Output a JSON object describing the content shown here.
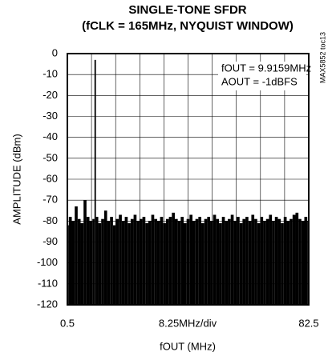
{
  "chart_data": {
    "type": "spectrum",
    "title": "SINGLE-TONE SFDR",
    "subtitle": "(fCLK = 165MHz, NYQUIST WINDOW)",
    "x_label": "fOUT (MHz)",
    "y_label": "AMPLITUDE (dBm)",
    "x_division_label": "8.25MHz/div",
    "annotations": [
      "fOUT = 9.9159MHz",
      "AOUT = -1dBFS"
    ],
    "side_note": "MAX5852 toc13",
    "color": "#000000",
    "grid": true,
    "x_divisions": 10,
    "xlim": [
      0.5,
      82.5
    ],
    "xticks": [
      0.5,
      82.5
    ],
    "ylim": [
      -120,
      0
    ],
    "yticks": [
      0,
      -10,
      -20,
      -30,
      -40,
      -50,
      -60,
      -70,
      -80,
      -90,
      -100,
      -110,
      -120
    ],
    "x": [
      0.5,
      1.5,
      2.5,
      3.5,
      4.5,
      5.5,
      6.5,
      7.5,
      8.5,
      9.5,
      9.9159,
      10.5,
      11.5,
      12.5,
      13.5,
      14.5,
      15.5,
      16.5,
      17.5,
      18.5,
      19.5,
      20.5,
      21.5,
      22.5,
      23.5,
      24.5,
      25.5,
      26.5,
      27.5,
      28.5,
      29.5,
      30.5,
      31.5,
      32.5,
      33.5,
      34.5,
      35.5,
      36.5,
      37.5,
      38.5,
      39.5,
      40.5,
      41.5,
      42.5,
      43.5,
      44.5,
      45.5,
      46.5,
      47.5,
      48.5,
      49.5,
      50.5,
      51.5,
      52.5,
      53.5,
      54.5,
      55.5,
      56.5,
      57.5,
      58.5,
      59.5,
      60.5,
      61.5,
      62.5,
      63.5,
      64.5,
      65.5,
      66.5,
      67.5,
      68.5,
      69.5,
      70.5,
      71.5,
      72.5,
      73.5,
      74.5,
      75.5,
      76.5,
      77.5,
      78.5,
      79.5,
      80.5,
      81.5,
      82.5
    ],
    "values": [
      -82,
      -78,
      -80,
      -73,
      -79,
      -81,
      -70,
      -78,
      -80,
      -79,
      -3,
      -78,
      -81,
      -79,
      -75,
      -80,
      -78,
      -82,
      -79,
      -77,
      -80,
      -78,
      -81,
      -79,
      -77,
      -80,
      -79,
      -78,
      -81,
      -80,
      -77,
      -79,
      -80,
      -78,
      -81,
      -79,
      -78,
      -76,
      -79,
      -80,
      -78,
      -81,
      -79,
      -77,
      -80,
      -79,
      -78,
      -81,
      -79,
      -78,
      -80,
      -77,
      -79,
      -81,
      -78,
      -80,
      -79,
      -77,
      -80,
      -78,
      -81,
      -79,
      -78,
      -80,
      -77,
      -79,
      -81,
      -78,
      -80,
      -79,
      -77,
      -80,
      -78,
      -79,
      -81,
      -78,
      -80,
      -79,
      -77,
      -76,
      -79,
      -80,
      -78,
      -80
    ]
  }
}
